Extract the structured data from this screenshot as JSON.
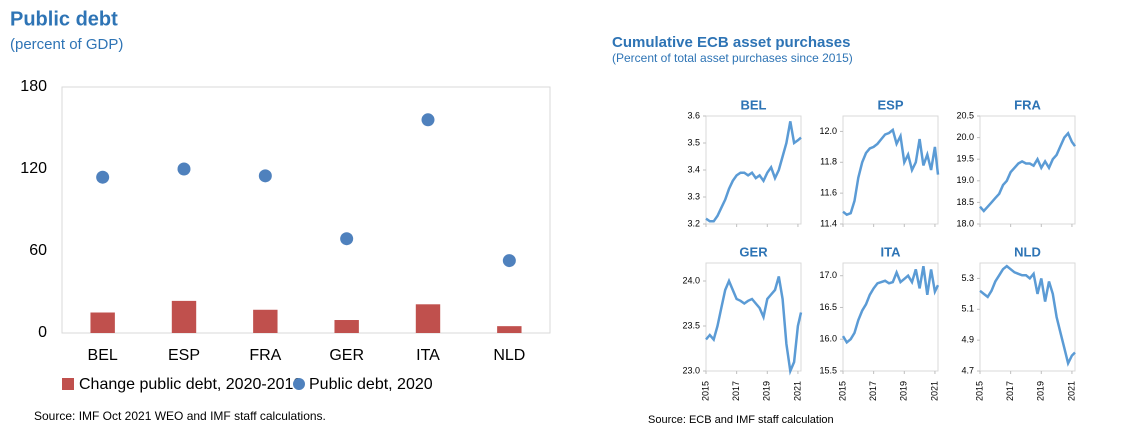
{
  "chart_data": [
    {
      "type": "combo",
      "title": "Public debt",
      "subtitle": "(percent of GDP)",
      "categories": [
        "BEL",
        "ESP",
        "FRA",
        "GER",
        "ITA",
        "NLD"
      ],
      "series": [
        {
          "name": "Change public debt, 2020-2019",
          "type": "bar",
          "color": "#c0504d",
          "values": [
            15,
            23.5,
            17,
            9.5,
            21,
            5
          ]
        },
        {
          "name": "Public debt, 2020",
          "type": "scatter",
          "color": "#4f81bd",
          "values": [
            114,
            120,
            115,
            69,
            156,
            53
          ]
        }
      ],
      "ylim": [
        0,
        180
      ],
      "yticks": [
        0,
        60,
        120,
        180
      ],
      "source": "Source: IMF Oct 2021 WEO and IMF staff calculations."
    },
    {
      "type": "line",
      "title": "Cumulative ECB asset purchases",
      "subtitle": "(Percent of total asset purchases since 2015)",
      "color": "#5b9bd5",
      "xlim": [
        2015,
        2021.2
      ],
      "xticks": [
        2015,
        2017,
        2019,
        2021
      ],
      "x": [
        2015,
        2015.25,
        2015.5,
        2015.75,
        2016,
        2016.25,
        2016.5,
        2016.75,
        2017,
        2017.25,
        2017.5,
        2017.75,
        2018,
        2018.25,
        2018.5,
        2018.75,
        2019,
        2019.25,
        2019.5,
        2019.75,
        2020,
        2020.25,
        2020.5,
        2020.75,
        2021,
        2021.2
      ],
      "panels": [
        {
          "title": "BEL",
          "ylim": [
            3.2,
            3.6
          ],
          "yticks": [
            3.2,
            3.3,
            3.4,
            3.5,
            3.6
          ],
          "values": [
            3.22,
            3.21,
            3.21,
            3.23,
            3.26,
            3.29,
            3.33,
            3.36,
            3.38,
            3.39,
            3.39,
            3.38,
            3.39,
            3.37,
            3.38,
            3.36,
            3.39,
            3.41,
            3.37,
            3.4,
            3.45,
            3.5,
            3.58,
            3.5,
            3.51,
            3.52
          ]
        },
        {
          "title": "ESP",
          "ylim": [
            11.4,
            12.1
          ],
          "yticks": [
            11.4,
            11.6,
            11.8,
            {
              "value": 12,
              "label": "12.0"
            }
          ],
          "values": [
            11.48,
            11.46,
            11.47,
            11.55,
            11.7,
            11.8,
            11.86,
            11.89,
            11.9,
            11.92,
            11.95,
            11.98,
            11.99,
            12.01,
            11.92,
            11.97,
            11.8,
            11.85,
            11.75,
            11.8,
            11.95,
            11.78,
            11.85,
            11.75,
            11.9,
            11.72
          ]
        },
        {
          "title": "FRA",
          "ylim": [
            18,
            20.5
          ],
          "yticks": [
            {
              "value": 18,
              "label": "18.0"
            },
            18.5,
            {
              "value": 19,
              "label": "19.0"
            },
            19.5,
            {
              "value": 20,
              "label": "20.0"
            },
            20.5
          ],
          "values": [
            18.4,
            18.3,
            18.4,
            18.5,
            18.6,
            18.7,
            18.9,
            19,
            19.2,
            19.3,
            19.4,
            19.45,
            19.4,
            19.4,
            19.35,
            19.5,
            19.3,
            19.45,
            19.3,
            19.5,
            19.6,
            19.8,
            20,
            20.1,
            19.9,
            19.8
          ]
        },
        {
          "title": "GER",
          "ylim": [
            23,
            24.2
          ],
          "yticks": [
            {
              "value": 23,
              "label": "23.0"
            },
            23.5,
            {
              "value": 24,
              "label": "24.0"
            }
          ],
          "values": [
            23.35,
            23.4,
            23.35,
            23.5,
            23.7,
            23.9,
            24,
            23.9,
            23.8,
            23.78,
            23.75,
            23.78,
            23.8,
            23.75,
            23.7,
            23.6,
            23.8,
            23.85,
            23.9,
            24.05,
            23.8,
            23.3,
            23,
            23.1,
            23.5,
            23.65
          ]
        },
        {
          "title": "ITA",
          "ylim": [
            15.5,
            17.2
          ],
          "yticks": [
            15.5,
            {
              "value": 16,
              "label": "16.0"
            },
            16.5,
            {
              "value": 17,
              "label": "17.0"
            }
          ],
          "values": [
            16.05,
            15.95,
            16,
            16.1,
            16.3,
            16.45,
            16.55,
            16.7,
            16.8,
            16.88,
            16.9,
            16.92,
            16.88,
            16.9,
            17.05,
            16.9,
            16.95,
            17,
            16.9,
            17.1,
            16.8,
            17.15,
            16.7,
            17.1,
            16.75,
            16.85
          ]
        },
        {
          "title": "NLD",
          "ylim": [
            4.7,
            5.4
          ],
          "yticks": [
            4.7,
            4.9,
            5.1,
            5.3
          ],
          "values": [
            5.22,
            5.2,
            5.18,
            5.22,
            5.28,
            5.32,
            5.36,
            5.38,
            5.36,
            5.34,
            5.33,
            5.32,
            5.32,
            5.3,
            5.33,
            5.2,
            5.3,
            5.15,
            5.28,
            5.2,
            5.05,
            4.95,
            4.85,
            4.75,
            4.8,
            4.82
          ]
        }
      ],
      "source": "Source: ECB and IMF staff calculation"
    }
  ]
}
